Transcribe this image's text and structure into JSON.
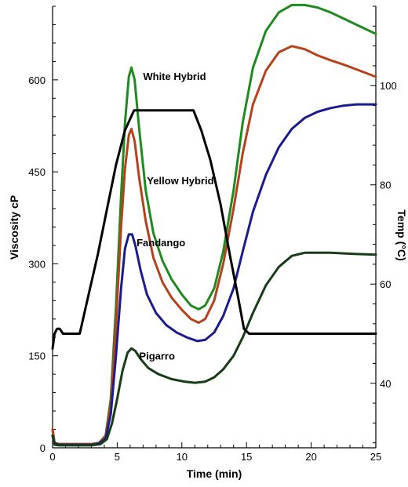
{
  "chart_data": {
    "type": "line",
    "title": "",
    "xlabel": "Time (min)",
    "ylabel": "Viscosity cP",
    "y2label": "Temp (°C)",
    "xlim": [
      0,
      25
    ],
    "ylim": [
      0,
      720
    ],
    "y2lim": [
      27,
      116
    ],
    "xticks": [
      0,
      5,
      10,
      15,
      20,
      25
    ],
    "yticks": [
      0,
      150,
      300,
      450,
      600
    ],
    "y2ticks": [
      40,
      60,
      80,
      100
    ],
    "grid": false,
    "series": [
      {
        "name": "White Hybrid",
        "axis": "left",
        "color": "#1f8a1f",
        "label_at": [
          7,
          606
        ],
        "points": [
          [
            0,
            30
          ],
          [
            0.15,
            8
          ],
          [
            0.5,
            6
          ],
          [
            1,
            6
          ],
          [
            2,
            6
          ],
          [
            3,
            6
          ],
          [
            3.6,
            8
          ],
          [
            4.1,
            20
          ],
          [
            4.5,
            80
          ],
          [
            4.9,
            230
          ],
          [
            5.3,
            410
          ],
          [
            5.6,
            530
          ],
          [
            5.9,
            605
          ],
          [
            6.1,
            620
          ],
          [
            6.35,
            600
          ],
          [
            6.7,
            520
          ],
          [
            7.2,
            420
          ],
          [
            7.8,
            350
          ],
          [
            8.5,
            305
          ],
          [
            9.2,
            275
          ],
          [
            10,
            250
          ],
          [
            10.7,
            232
          ],
          [
            11.3,
            226
          ],
          [
            11.8,
            232
          ],
          [
            12.5,
            260
          ],
          [
            13.2,
            320
          ],
          [
            14,
            420
          ],
          [
            14.7,
            530
          ],
          [
            15.5,
            620
          ],
          [
            16.5,
            680
          ],
          [
            17.5,
            710
          ],
          [
            18.5,
            722
          ],
          [
            19.5,
            722
          ],
          [
            20.5,
            718
          ],
          [
            21.5,
            710
          ],
          [
            22.5,
            700
          ],
          [
            23.5,
            690
          ],
          [
            25,
            675
          ]
        ]
      },
      {
        "name": "Yellow Hybrid",
        "axis": "left",
        "color": "#b5421b",
        "label_at": [
          7.3,
          436
        ],
        "points": [
          [
            0,
            30
          ],
          [
            0.15,
            8
          ],
          [
            0.5,
            6
          ],
          [
            1,
            6
          ],
          [
            2,
            6
          ],
          [
            3,
            6
          ],
          [
            3.6,
            8
          ],
          [
            4.1,
            18
          ],
          [
            4.5,
            70
          ],
          [
            4.9,
            200
          ],
          [
            5.3,
            360
          ],
          [
            5.6,
            455
          ],
          [
            5.9,
            510
          ],
          [
            6.1,
            520
          ],
          [
            6.35,
            500
          ],
          [
            6.7,
            440
          ],
          [
            7.2,
            370
          ],
          [
            7.8,
            310
          ],
          [
            8.5,
            270
          ],
          [
            9.2,
            245
          ],
          [
            10,
            225
          ],
          [
            10.7,
            210
          ],
          [
            11.3,
            204
          ],
          [
            11.8,
            210
          ],
          [
            12.5,
            240
          ],
          [
            13.2,
            300
          ],
          [
            14,
            390
          ],
          [
            14.7,
            480
          ],
          [
            15.5,
            560
          ],
          [
            16.5,
            615
          ],
          [
            17.5,
            645
          ],
          [
            18.5,
            655
          ],
          [
            19.5,
            650
          ],
          [
            20.5,
            640
          ],
          [
            21.5,
            632
          ],
          [
            22.5,
            625
          ],
          [
            23.5,
            617
          ],
          [
            25,
            605
          ]
        ]
      },
      {
        "name": "Fandango",
        "axis": "left",
        "color": "#1b1b90",
        "label_at": [
          6.5,
          335
        ],
        "points": [
          [
            0,
            20
          ],
          [
            0.15,
            7
          ],
          [
            0.5,
            5
          ],
          [
            1,
            5
          ],
          [
            2,
            5
          ],
          [
            3,
            5
          ],
          [
            3.6,
            7
          ],
          [
            4.1,
            15
          ],
          [
            4.5,
            55
          ],
          [
            4.9,
            150
          ],
          [
            5.3,
            260
          ],
          [
            5.6,
            325
          ],
          [
            5.9,
            348
          ],
          [
            6.15,
            348
          ],
          [
            6.4,
            330
          ],
          [
            6.8,
            290
          ],
          [
            7.3,
            250
          ],
          [
            8,
            220
          ],
          [
            8.8,
            200
          ],
          [
            9.6,
            188
          ],
          [
            10.4,
            180
          ],
          [
            11.2,
            174
          ],
          [
            11.8,
            176
          ],
          [
            12.5,
            188
          ],
          [
            13.2,
            215
          ],
          [
            14,
            260
          ],
          [
            14.7,
            320
          ],
          [
            15.5,
            385
          ],
          [
            16.5,
            445
          ],
          [
            17.5,
            490
          ],
          [
            18.5,
            520
          ],
          [
            19.5,
            538
          ],
          [
            20.5,
            548
          ],
          [
            21.5,
            554
          ],
          [
            22.5,
            558
          ],
          [
            23.5,
            560
          ],
          [
            25,
            560
          ]
        ]
      },
      {
        "name": "Pigarro",
        "axis": "left",
        "color": "#173d17",
        "label_at": [
          6.7,
          150
        ],
        "points": [
          [
            0,
            20
          ],
          [
            0.15,
            5
          ],
          [
            0.5,
            4
          ],
          [
            1,
            4
          ],
          [
            2,
            4
          ],
          [
            3,
            4
          ],
          [
            3.7,
            6
          ],
          [
            4.2,
            14
          ],
          [
            4.6,
            40
          ],
          [
            5,
            80
          ],
          [
            5.4,
            125
          ],
          [
            5.8,
            155
          ],
          [
            6.1,
            162
          ],
          [
            6.4,
            158
          ],
          [
            6.8,
            145
          ],
          [
            7.4,
            130
          ],
          [
            8.2,
            120
          ],
          [
            9.2,
            112
          ],
          [
            10.2,
            108
          ],
          [
            11,
            106
          ],
          [
            11.8,
            108
          ],
          [
            12.5,
            115
          ],
          [
            13.2,
            128
          ],
          [
            14,
            150
          ],
          [
            14.7,
            180
          ],
          [
            15.5,
            220
          ],
          [
            16.5,
            265
          ],
          [
            17.5,
            295
          ],
          [
            18.5,
            313
          ],
          [
            19.5,
            318
          ],
          [
            20.5,
            318
          ],
          [
            21.5,
            318
          ],
          [
            22.5,
            317
          ],
          [
            23.5,
            316
          ],
          [
            25,
            315
          ]
        ]
      },
      {
        "name": "Temp",
        "axis": "right",
        "color": "#000000",
        "label_at": null,
        "points": [
          [
            0,
            47
          ],
          [
            0.15,
            50
          ],
          [
            0.35,
            51
          ],
          [
            0.55,
            51
          ],
          [
            0.8,
            50
          ],
          [
            1.2,
            50
          ],
          [
            1.6,
            50
          ],
          [
            2.1,
            50
          ],
          [
            2.8,
            58
          ],
          [
            3.5,
            66
          ],
          [
            4.2,
            75
          ],
          [
            4.9,
            84
          ],
          [
            5.6,
            91
          ],
          [
            6.3,
            95
          ],
          [
            7,
            95
          ],
          [
            8,
            95
          ],
          [
            9,
            95
          ],
          [
            10,
            95
          ],
          [
            10.9,
            95
          ],
          [
            11.5,
            91
          ],
          [
            12.2,
            85
          ],
          [
            13,
            76
          ],
          [
            13.7,
            66
          ],
          [
            14.3,
            58
          ],
          [
            14.8,
            51
          ],
          [
            15.2,
            50
          ],
          [
            16,
            50
          ],
          [
            17,
            50
          ],
          [
            18,
            50
          ],
          [
            19,
            50
          ],
          [
            20,
            50
          ],
          [
            21,
            50
          ],
          [
            22,
            50
          ],
          [
            23,
            50
          ],
          [
            24,
            50
          ],
          [
            25,
            50
          ]
        ]
      }
    ]
  }
}
